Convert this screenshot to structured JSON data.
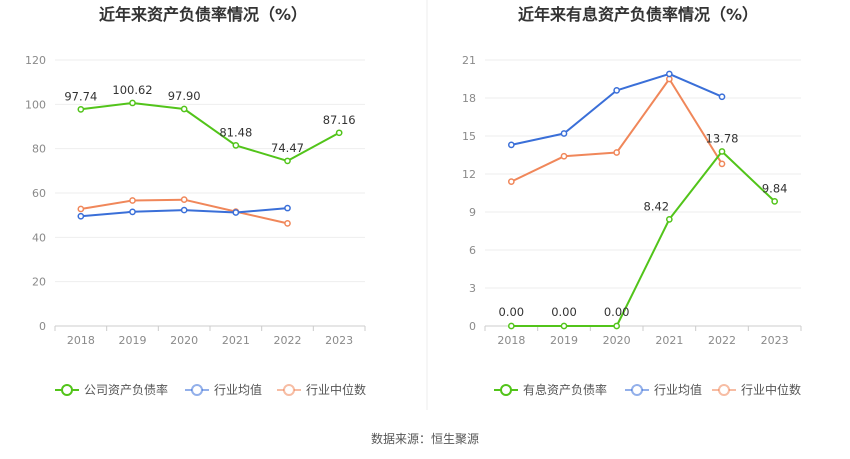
{
  "source": "数据来源：恒生聚源",
  "chart_data": [
    {
      "type": "line",
      "title": "近年来资产负债率情况（%）",
      "categories": [
        "2018",
        "2019",
        "2020",
        "2021",
        "2022",
        "2023"
      ],
      "ylim": [
        0,
        120
      ],
      "yticks": [
        0,
        20,
        40,
        60,
        80,
        100,
        120
      ],
      "grid": true,
      "legend_position": "bottom",
      "series": [
        {
          "name": "公司资产负债率",
          "color": "#52c41a",
          "values": [
            97.74,
            100.62,
            97.9,
            81.48,
            74.47,
            87.16
          ],
          "labels": [
            "97.74",
            "100.62",
            "97.90",
            "81.48",
            "74.47",
            "87.16"
          ]
        },
        {
          "name": "行业均值",
          "color": "#3a6fd8",
          "values": [
            49.5,
            51.5,
            52.3,
            51.2,
            53.2,
            null
          ]
        },
        {
          "name": "行业中位数",
          "color": "#f0875a",
          "values": [
            52.8,
            56.6,
            57.0,
            51.6,
            46.3,
            null
          ]
        }
      ]
    },
    {
      "type": "line",
      "title": "近年来有息资产负债率情况（%）",
      "categories": [
        "2018",
        "2019",
        "2020",
        "2021",
        "2022",
        "2023"
      ],
      "ylim": [
        0,
        21
      ],
      "yticks": [
        0,
        3,
        6,
        9,
        12,
        15,
        18,
        21
      ],
      "grid": true,
      "legend_position": "bottom",
      "series": [
        {
          "name": "有息资产负债率",
          "color": "#52c41a",
          "values": [
            0.0,
            0.0,
            0.0,
            8.42,
            13.78,
            9.84
          ],
          "labels": [
            "0.00",
            "0.00",
            "0.00",
            "8.42",
            "13.78",
            "9.84"
          ]
        },
        {
          "name": "行业均值",
          "color": "#3a6fd8",
          "values": [
            14.3,
            15.2,
            18.6,
            19.9,
            18.1,
            null
          ]
        },
        {
          "name": "行业中位数",
          "color": "#f0875a",
          "values": [
            11.4,
            13.4,
            13.7,
            19.5,
            12.8,
            null
          ]
        }
      ]
    }
  ]
}
